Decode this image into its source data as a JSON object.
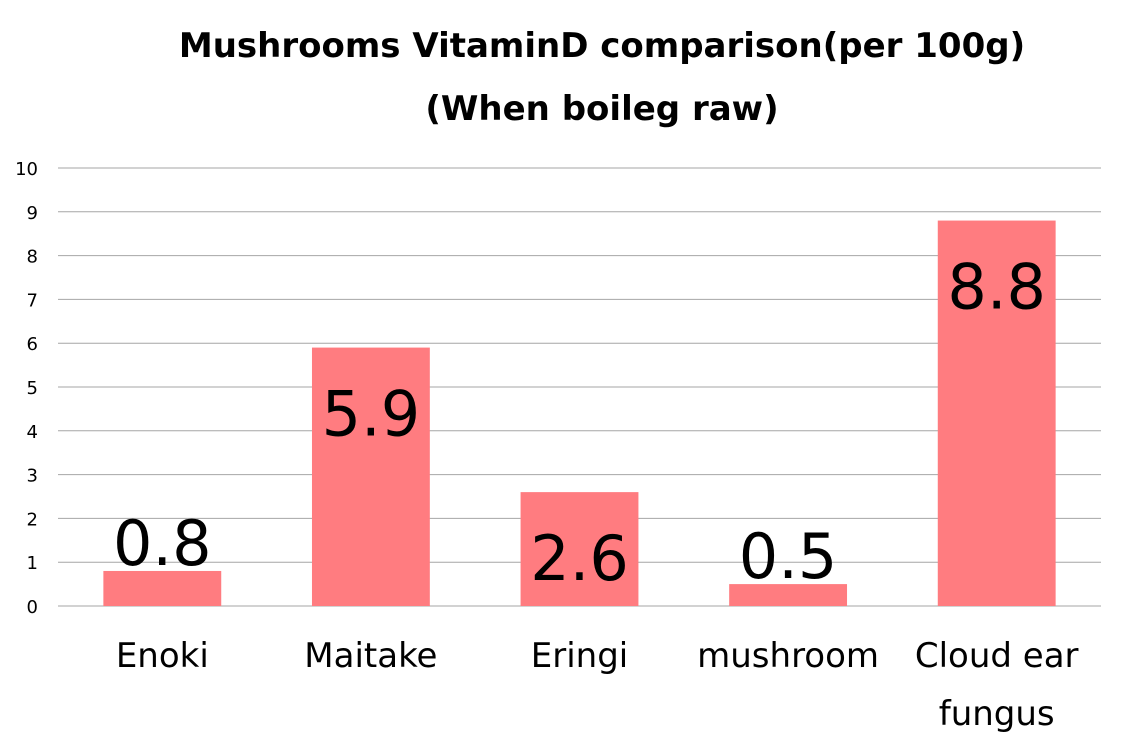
{
  "chart_data": {
    "type": "bar",
    "title": "Mushrooms VitaminD comparison(per 100g)",
    "subtitle": "(When boileg raw)",
    "categories": [
      [
        "Enoki"
      ],
      [
        "Maitake"
      ],
      [
        "Eringi"
      ],
      [
        "mushroom"
      ],
      [
        "Cloud ear",
        "fungus"
      ]
    ],
    "values": [
      0.8,
      5.9,
      2.6,
      0.5,
      8.8
    ],
    "data_labels": [
      "0.8",
      "5.9",
      "2.6",
      "0.5",
      "8.8"
    ],
    "y_ticks": [
      "0",
      "1",
      "2",
      "3",
      "4",
      "5",
      "6",
      "7",
      "8",
      "9",
      "10"
    ],
    "ylim": [
      0,
      10
    ],
    "grid": true,
    "legend": "none",
    "bar_color": "#ff7c80",
    "grid_color": "#a6a6a6"
  }
}
